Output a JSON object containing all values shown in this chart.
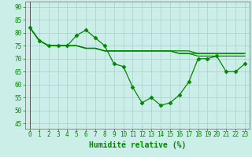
{
  "xlabel": "Humidité relative (%)",
  "xlim": [
    -0.5,
    23.5
  ],
  "ylim": [
    43,
    92
  ],
  "yticks": [
    45,
    50,
    55,
    60,
    65,
    70,
    75,
    80,
    85,
    90
  ],
  "xticks": [
    0,
    1,
    2,
    3,
    4,
    5,
    6,
    7,
    8,
    9,
    10,
    11,
    12,
    13,
    14,
    15,
    16,
    17,
    18,
    19,
    20,
    21,
    22,
    23
  ],
  "background_color": "#cceee8",
  "grid_color": "#aacccc",
  "line_color": "#008800",
  "line1": [
    82,
    77,
    75,
    75,
    75,
    79,
    81,
    78,
    75,
    68,
    67,
    59,
    53,
    55,
    52,
    53,
    56,
    61,
    70,
    70,
    71,
    65,
    65,
    68
  ],
  "line2": [
    82,
    77,
    75,
    75,
    75,
    75,
    74,
    74,
    73,
    73,
    73,
    73,
    73,
    73,
    73,
    73,
    72,
    72,
    71,
    71,
    71,
    71,
    71,
    71
  ],
  "line3": [
    82,
    77,
    75,
    75,
    75,
    75,
    74,
    74,
    73,
    73,
    73,
    73,
    73,
    73,
    73,
    73,
    72,
    72,
    72,
    72,
    72,
    72,
    72,
    72
  ],
  "line4": [
    82,
    77,
    75,
    75,
    75,
    75,
    74,
    74,
    73,
    73,
    73,
    73,
    73,
    73,
    73,
    73,
    73,
    73,
    72,
    72,
    72,
    72,
    72,
    72
  ],
  "marker": "D",
  "marker_size": 2.5,
  "line_width": 0.9,
  "xlabel_fontsize": 7,
  "tick_fontsize": 5.5
}
